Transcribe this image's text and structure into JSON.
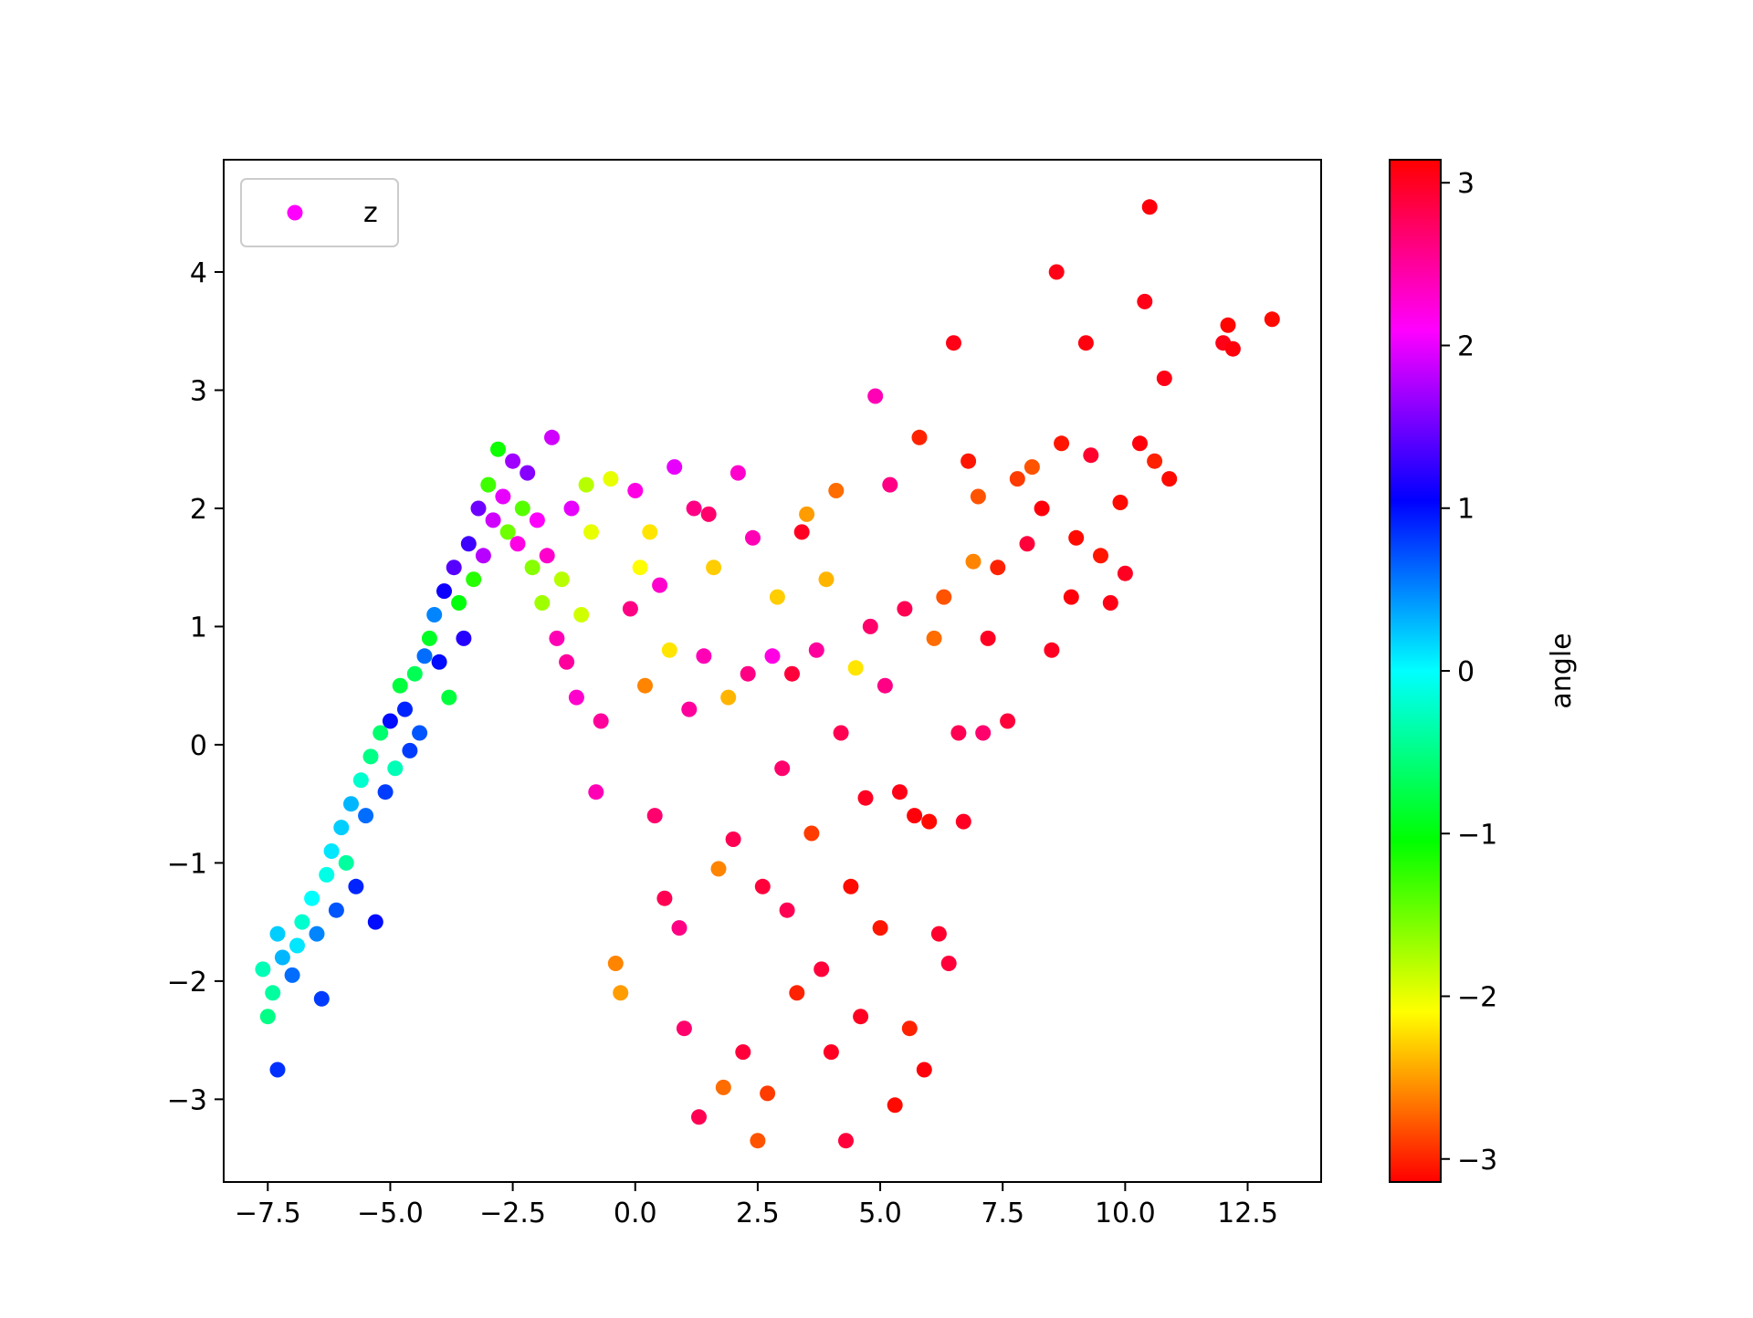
{
  "chart_data": {
    "type": "scatter",
    "title": "",
    "xlabel": "",
    "ylabel": "",
    "xlim": [
      -8.4,
      14.0
    ],
    "ylim": [
      -3.7,
      4.95
    ],
    "xticks": [
      -7.5,
      -5.0,
      -2.5,
      0.0,
      2.5,
      5.0,
      7.5,
      10.0,
      12.5
    ],
    "xtick_labels": [
      "−7.5",
      "−5.0",
      "−2.5",
      "0.0",
      "2.5",
      "5.0",
      "7.5",
      "10.0",
      "12.5"
    ],
    "yticks": [
      -3,
      -2,
      -1,
      0,
      1,
      2,
      3,
      4
    ],
    "ytick_labels": [
      "−3",
      "−2",
      "−1",
      "0",
      "1",
      "2",
      "3",
      "4"
    ],
    "grid": false,
    "legend": {
      "placement": "top-left",
      "entries": [
        {
          "label": "z",
          "color": "#ff00ff"
        }
      ]
    },
    "colorbar": {
      "label": "angle",
      "range": [
        -3.14159,
        3.14159
      ],
      "ticks": [
        -3,
        -2,
        -1,
        0,
        1,
        2,
        3
      ],
      "tick_labels": [
        "−3",
        "−2",
        "−1",
        "0",
        "1",
        "2",
        "3"
      ],
      "colormap": "hsv",
      "stops": [
        "#ff0000",
        "#ff8000",
        "#ffff00",
        "#80ff00",
        "#00ff00",
        "#00ff80",
        "#00ffff",
        "#0080ff",
        "#0000ff",
        "#8000ff",
        "#ff00ff",
        "#ff0080",
        "#ff0000"
      ]
    },
    "series": [
      {
        "points": [
          [
            -7.3,
            -2.75,
            0.85
          ],
          [
            -7.5,
            -2.3,
            -0.5
          ],
          [
            -7.4,
            -2.1,
            -0.4
          ],
          [
            -7.6,
            -1.9,
            -0.3
          ],
          [
            -7.3,
            -1.6,
            0.2
          ],
          [
            -7.2,
            -1.8,
            0.3
          ],
          [
            -7.0,
            -1.95,
            0.6
          ],
          [
            -6.9,
            -1.7,
            0.1
          ],
          [
            -6.8,
            -1.5,
            -0.2
          ],
          [
            -6.6,
            -1.3,
            0.0
          ],
          [
            -6.5,
            -1.6,
            0.5
          ],
          [
            -6.4,
            -2.15,
            0.8
          ],
          [
            -6.3,
            -1.1,
            -0.1
          ],
          [
            -6.2,
            -0.9,
            0.1
          ],
          [
            -6.1,
            -1.4,
            0.7
          ],
          [
            -6.0,
            -0.7,
            0.2
          ],
          [
            -5.9,
            -1.0,
            -0.4
          ],
          [
            -5.8,
            -0.5,
            0.3
          ],
          [
            -5.7,
            -1.2,
            0.9
          ],
          [
            -5.6,
            -0.3,
            -0.2
          ],
          [
            -5.5,
            -0.6,
            0.6
          ],
          [
            -5.4,
            -0.1,
            -0.5
          ],
          [
            -5.3,
            -1.5,
            1.0
          ],
          [
            -5.2,
            0.1,
            -0.6
          ],
          [
            -5.1,
            -0.4,
            0.8
          ],
          [
            -5.0,
            0.2,
            1.0
          ],
          [
            -4.9,
            -0.2,
            -0.3
          ],
          [
            -4.8,
            0.5,
            -0.8
          ],
          [
            -4.7,
            0.3,
            0.9
          ],
          [
            -4.6,
            -0.05,
            0.8
          ],
          [
            -4.5,
            0.6,
            -0.7
          ],
          [
            -4.4,
            0.1,
            0.7
          ],
          [
            -4.3,
            0.75,
            0.6
          ],
          [
            -4.2,
            0.9,
            -0.9
          ],
          [
            -4.1,
            1.1,
            0.5
          ],
          [
            -4.0,
            0.7,
            1.0
          ],
          [
            -3.9,
            1.3,
            1.1
          ],
          [
            -3.8,
            0.4,
            -0.8
          ],
          [
            -3.7,
            1.5,
            1.4
          ],
          [
            -3.6,
            1.2,
            -1.0
          ],
          [
            -3.5,
            0.9,
            1.2
          ],
          [
            -3.4,
            1.7,
            1.3
          ],
          [
            -3.3,
            1.4,
            -1.2
          ],
          [
            -3.2,
            2.0,
            1.5
          ],
          [
            -3.1,
            1.6,
            1.8
          ],
          [
            -3.0,
            2.2,
            -1.3
          ],
          [
            -2.9,
            1.9,
            1.9
          ],
          [
            -2.8,
            2.5,
            -1.1
          ],
          [
            -2.7,
            2.1,
            2.0
          ],
          [
            -2.6,
            1.8,
            -1.5
          ],
          [
            -2.5,
            2.4,
            1.7
          ],
          [
            -2.4,
            1.7,
            2.2
          ],
          [
            -2.3,
            2.0,
            -1.4
          ],
          [
            -2.2,
            2.3,
            1.6
          ],
          [
            -2.1,
            1.5,
            -1.6
          ],
          [
            -2.0,
            1.9,
            2.1
          ],
          [
            -1.9,
            1.2,
            -1.7
          ],
          [
            -1.8,
            1.6,
            2.3
          ],
          [
            -1.7,
            2.6,
            1.9
          ],
          [
            -1.6,
            0.9,
            2.4
          ],
          [
            -1.5,
            1.4,
            -1.8
          ],
          [
            -1.4,
            0.7,
            2.5
          ],
          [
            -1.3,
            2.0,
            2.0
          ],
          [
            -1.2,
            0.4,
            2.3
          ],
          [
            -1.1,
            1.1,
            -1.9
          ],
          [
            -1.0,
            2.2,
            -1.8
          ],
          [
            -0.9,
            1.8,
            -2.0
          ],
          [
            -0.8,
            -0.4,
            2.4
          ],
          [
            -0.7,
            0.2,
            2.5
          ],
          [
            -0.5,
            2.25,
            -2.0
          ],
          [
            -0.4,
            -1.85,
            -2.6
          ],
          [
            -0.3,
            -2.1,
            -2.5
          ],
          [
            -0.1,
            1.15,
            2.6
          ],
          [
            0.0,
            2.15,
            2.2
          ],
          [
            0.1,
            1.5,
            -2.1
          ],
          [
            0.2,
            0.5,
            -2.6
          ],
          [
            0.3,
            1.8,
            -2.2
          ],
          [
            0.4,
            -0.6,
            2.7
          ],
          [
            0.5,
            1.35,
            2.3
          ],
          [
            0.6,
            -1.3,
            2.8
          ],
          [
            0.7,
            0.8,
            -2.2
          ],
          [
            0.8,
            2.35,
            2.0
          ],
          [
            0.9,
            -1.55,
            2.6
          ],
          [
            1.0,
            -2.4,
            2.7
          ],
          [
            1.1,
            0.3,
            2.5
          ],
          [
            1.2,
            2.0,
            2.6
          ],
          [
            1.3,
            -3.15,
            2.8
          ],
          [
            1.4,
            0.75,
            2.4
          ],
          [
            1.5,
            1.95,
            2.7
          ],
          [
            1.6,
            1.5,
            -2.3
          ],
          [
            1.7,
            -1.05,
            -2.6
          ],
          [
            1.8,
            -2.9,
            -2.7
          ],
          [
            1.9,
            0.4,
            -2.4
          ],
          [
            2.0,
            -0.8,
            2.8
          ],
          [
            2.1,
            2.3,
            2.3
          ],
          [
            2.2,
            -2.6,
            2.9
          ],
          [
            2.3,
            0.6,
            2.6
          ],
          [
            2.4,
            1.75,
            2.4
          ],
          [
            2.5,
            -3.35,
            -2.8
          ],
          [
            2.6,
            -1.2,
            2.9
          ],
          [
            2.7,
            -2.95,
            -2.9
          ],
          [
            2.8,
            0.75,
            2.2
          ],
          [
            2.9,
            1.25,
            -2.3
          ],
          [
            3.0,
            -0.2,
            2.7
          ],
          [
            3.1,
            -1.4,
            2.8
          ],
          [
            3.2,
            0.6,
            2.9
          ],
          [
            3.3,
            -2.1,
            -3.0
          ],
          [
            3.4,
            1.8,
            3.0
          ],
          [
            3.5,
            1.95,
            -2.5
          ],
          [
            3.6,
            -0.75,
            -2.9
          ],
          [
            3.7,
            0.8,
            2.5
          ],
          [
            3.8,
            -1.9,
            2.9
          ],
          [
            3.9,
            1.4,
            -2.4
          ],
          [
            4.0,
            -2.6,
            3.0
          ],
          [
            4.1,
            2.15,
            -2.7
          ],
          [
            4.2,
            0.1,
            2.8
          ],
          [
            4.3,
            -3.35,
            2.9
          ],
          [
            4.4,
            -1.2,
            -3.1
          ],
          [
            4.5,
            0.65,
            -2.2
          ],
          [
            4.6,
            -2.3,
            3.0
          ],
          [
            4.7,
            -0.45,
            3.0
          ],
          [
            4.8,
            1.0,
            2.7
          ],
          [
            4.9,
            2.95,
            2.4
          ],
          [
            5.0,
            -1.55,
            -3.05
          ],
          [
            5.1,
            0.5,
            2.6
          ],
          [
            5.2,
            2.2,
            2.6
          ],
          [
            5.3,
            -3.05,
            -3.1
          ],
          [
            5.4,
            -0.4,
            3.05
          ],
          [
            5.5,
            1.15,
            2.8
          ],
          [
            5.6,
            -2.4,
            -3.0
          ],
          [
            5.7,
            -0.6,
            3.1
          ],
          [
            5.8,
            2.6,
            -3.0
          ],
          [
            5.9,
            -2.75,
            3.1
          ],
          [
            6.0,
            -0.65,
            -3.1
          ],
          [
            6.1,
            0.9,
            -2.7
          ],
          [
            6.2,
            -1.6,
            2.95
          ],
          [
            6.3,
            1.25,
            -2.8
          ],
          [
            6.4,
            -1.85,
            2.9
          ],
          [
            6.5,
            3.4,
            3.05
          ],
          [
            6.6,
            0.1,
            2.8
          ],
          [
            6.7,
            -0.65,
            3.0
          ],
          [
            6.8,
            2.4,
            -3.05
          ],
          [
            6.9,
            1.55,
            -2.6
          ],
          [
            7.0,
            2.1,
            -2.8
          ],
          [
            7.1,
            0.1,
            2.7
          ],
          [
            7.2,
            0.9,
            3.0
          ],
          [
            7.4,
            1.5,
            -3.0
          ],
          [
            7.6,
            0.2,
            2.9
          ],
          [
            7.8,
            2.25,
            -2.9
          ],
          [
            8.0,
            1.7,
            2.9
          ],
          [
            8.1,
            2.35,
            -2.8
          ],
          [
            8.3,
            2.0,
            3.1
          ],
          [
            8.5,
            0.8,
            3.0
          ],
          [
            8.6,
            4.0,
            3.05
          ],
          [
            8.7,
            2.55,
            -3.05
          ],
          [
            8.9,
            1.25,
            3.1
          ],
          [
            9.0,
            1.75,
            -3.1
          ],
          [
            9.2,
            3.4,
            3.08
          ],
          [
            9.3,
            2.45,
            2.95
          ],
          [
            9.5,
            1.6,
            -3.05
          ],
          [
            9.7,
            1.2,
            3.05
          ],
          [
            9.9,
            2.05,
            -3.1
          ],
          [
            10.0,
            1.45,
            3.0
          ],
          [
            10.3,
            2.55,
            3.1
          ],
          [
            10.4,
            3.75,
            3.05
          ],
          [
            10.5,
            4.55,
            3.1
          ],
          [
            10.6,
            2.4,
            -3.0
          ],
          [
            10.8,
            3.1,
            3.05
          ],
          [
            10.9,
            2.25,
            -3.1
          ],
          [
            12.0,
            3.4,
            3.05
          ],
          [
            12.1,
            3.55,
            -3.12
          ],
          [
            12.2,
            3.35,
            3.1
          ],
          [
            13.0,
            3.6,
            -3.1
          ]
        ]
      }
    ]
  }
}
